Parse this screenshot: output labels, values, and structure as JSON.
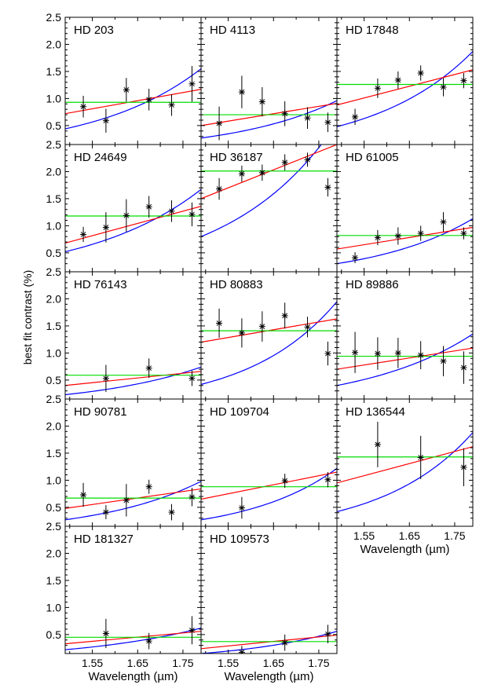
{
  "figure": {
    "ylabel": "best fit contrast (%)",
    "xlabel": "Wavelength (µm)",
    "x_ticks": [
      "1.55",
      "1.65",
      "1.75"
    ],
    "y_ticks": [
      "0.5",
      "1.0",
      "1.5",
      "2.0",
      "2.5"
    ]
  },
  "colors": {
    "flat": "#00dd00",
    "fit_red": "#ff0000",
    "fit_blue": "#0000ff",
    "data": "#000000"
  },
  "chart_data": [
    {
      "type": "scatter",
      "title": "HD 203",
      "xlim": [
        1.49,
        1.79
      ],
      "ylim": [
        0.15,
        2.5
      ],
      "points": [
        [
          1.53,
          0.85,
          0.2
        ],
        [
          1.58,
          0.59,
          0.22
        ],
        [
          1.625,
          1.16,
          0.22
        ],
        [
          1.675,
          0.98,
          0.2
        ],
        [
          1.725,
          0.88,
          0.2
        ],
        [
          1.77,
          1.27,
          0.33
        ]
      ],
      "flat": 0.93,
      "red_line": [
        0.72,
        1.17
      ],
      "blue_curve": [
        0.44,
        1.55
      ]
    },
    {
      "type": "scatter",
      "title": "HD 4113",
      "xlim": [
        1.49,
        1.79
      ],
      "ylim": [
        0.15,
        2.5
      ],
      "points": [
        [
          1.53,
          0.54,
          0.31
        ],
        [
          1.58,
          1.12,
          0.3
        ],
        [
          1.625,
          0.94,
          0.27
        ],
        [
          1.675,
          0.72,
          0.23
        ],
        [
          1.725,
          0.64,
          0.2
        ],
        [
          1.77,
          0.56,
          0.18
        ]
      ],
      "flat": 0.7,
      "red_line": [
        0.5,
        0.91
      ],
      "blue_curve": [
        0.27,
        0.96
      ]
    },
    {
      "type": "scatter",
      "title": "HD 17848",
      "xlim": [
        1.49,
        1.79
      ],
      "ylim": [
        0.15,
        2.5
      ],
      "points": [
        [
          1.53,
          0.66,
          0.15
        ],
        [
          1.58,
          1.19,
          0.18
        ],
        [
          1.625,
          1.34,
          0.16
        ],
        [
          1.675,
          1.47,
          0.14
        ],
        [
          1.725,
          1.21,
          0.17
        ],
        [
          1.77,
          1.33,
          0.14
        ]
      ],
      "flat": 1.26,
      "red_line": [
        0.88,
        1.53
      ],
      "blue_curve": [
        0.48,
        1.87
      ]
    },
    {
      "type": "scatter",
      "title": "HD 24649",
      "xlim": [
        1.49,
        1.79
      ],
      "ylim": [
        0.15,
        2.5
      ],
      "points": [
        [
          1.53,
          0.84,
          0.14
        ],
        [
          1.58,
          0.97,
          0.28
        ],
        [
          1.625,
          1.19,
          0.3
        ],
        [
          1.675,
          1.35,
          0.2
        ],
        [
          1.725,
          1.27,
          0.2
        ],
        [
          1.77,
          1.21,
          0.22
        ]
      ],
      "flat": 1.18,
      "red_line": [
        0.68,
        1.36
      ],
      "blue_curve": [
        0.52,
        1.67
      ]
    },
    {
      "type": "scatter",
      "title": "HD 36187",
      "xlim": [
        1.49,
        1.79
      ],
      "ylim": [
        0.15,
        2.5
      ],
      "points": [
        [
          1.53,
          1.68,
          0.2
        ],
        [
          1.58,
          1.96,
          0.15
        ],
        [
          1.625,
          1.98,
          0.15
        ],
        [
          1.675,
          2.17,
          0.15
        ],
        [
          1.725,
          2.22,
          0.13
        ],
        [
          1.77,
          1.71,
          0.17
        ]
      ],
      "flat": 2.01,
      "red_line": [
        1.5,
        2.5
      ],
      "blue_curve": [
        0.8,
        2.9
      ]
    },
    {
      "type": "scatter",
      "title": "HD 61005",
      "xlim": [
        1.49,
        1.79
      ],
      "ylim": [
        0.15,
        2.5
      ],
      "points": [
        [
          1.53,
          0.41,
          0.1
        ],
        [
          1.58,
          0.78,
          0.14
        ],
        [
          1.625,
          0.81,
          0.16
        ],
        [
          1.675,
          0.86,
          0.14
        ],
        [
          1.725,
          1.07,
          0.18
        ],
        [
          1.77,
          0.86,
          0.11
        ]
      ],
      "flat": 0.82,
      "red_line": [
        0.57,
        0.97
      ],
      "blue_curve": [
        0.3,
        1.13
      ]
    },
    {
      "type": "scatter",
      "title": "HD 76143",
      "xlim": [
        1.49,
        1.79
      ],
      "ylim": [
        0.15,
        2.5
      ],
      "points": [
        [
          1.58,
          0.53,
          0.25
        ],
        [
          1.675,
          0.72,
          0.18
        ],
        [
          1.77,
          0.53,
          0.14
        ]
      ],
      "flat": 0.59,
      "red_line": [
        0.4,
        0.66
      ],
      "blue_curve": [
        0.23,
        0.74
      ]
    },
    {
      "type": "scatter",
      "title": "HD 80883",
      "xlim": [
        1.49,
        1.79
      ],
      "ylim": [
        0.15,
        2.5
      ],
      "points": [
        [
          1.53,
          1.55,
          0.27
        ],
        [
          1.58,
          1.37,
          0.27
        ],
        [
          1.625,
          1.49,
          0.28
        ],
        [
          1.675,
          1.69,
          0.24
        ],
        [
          1.725,
          1.48,
          0.19
        ],
        [
          1.77,
          0.99,
          0.22
        ]
      ],
      "flat": 1.41,
      "red_line": [
        1.2,
        1.63
      ],
      "blue_curve": [
        0.42,
        1.95
      ]
    },
    {
      "type": "scatter",
      "title": "HD 89886",
      "xlim": [
        1.49,
        1.79
      ],
      "ylim": [
        0.15,
        2.5
      ],
      "points": [
        [
          1.53,
          1.01,
          0.38
        ],
        [
          1.58,
          0.99,
          0.3
        ],
        [
          1.625,
          1.0,
          0.28
        ],
        [
          1.675,
          0.96,
          0.26
        ],
        [
          1.725,
          0.85,
          0.28
        ],
        [
          1.77,
          0.73,
          0.3
        ]
      ],
      "flat": 0.94,
      "red_line": [
        0.7,
        1.09
      ],
      "blue_curve": [
        0.4,
        1.35
      ]
    },
    {
      "type": "scatter",
      "title": "HD 90781",
      "xlim": [
        1.49,
        1.79
      ],
      "ylim": [
        0.15,
        2.5
      ],
      "points": [
        [
          1.53,
          0.73,
          0.22
        ],
        [
          1.58,
          0.41,
          0.13
        ],
        [
          1.625,
          0.63,
          0.3
        ],
        [
          1.675,
          0.88,
          0.13
        ],
        [
          1.725,
          0.41,
          0.15
        ],
        [
          1.77,
          0.69,
          0.17
        ]
      ],
      "flat": 0.67,
      "red_line": [
        0.48,
        0.84
      ],
      "blue_curve": [
        0.27,
        0.98
      ]
    },
    {
      "type": "scatter",
      "title": "HD 109704",
      "xlim": [
        1.49,
        1.79
      ],
      "ylim": [
        0.15,
        2.5
      ],
      "points": [
        [
          1.58,
          0.49,
          0.2
        ],
        [
          1.675,
          0.99,
          0.13
        ],
        [
          1.77,
          1.01,
          0.14
        ]
      ],
      "flat": 0.88,
      "red_line": [
        0.65,
        1.15
      ],
      "blue_curve": [
        0.27,
        1.22
      ]
    },
    {
      "type": "scatter",
      "title": "HD 136544",
      "xlim": [
        1.49,
        1.79
      ],
      "ylim": [
        0.15,
        2.5
      ],
      "points": [
        [
          1.58,
          1.66,
          0.42
        ],
        [
          1.675,
          1.42,
          0.4
        ],
        [
          1.77,
          1.24,
          0.35
        ]
      ],
      "flat": 1.43,
      "red_line": [
        0.95,
        1.62
      ],
      "blue_curve": [
        0.42,
        1.88
      ]
    },
    {
      "type": "scatter",
      "title": "HD 181327",
      "xlim": [
        1.49,
        1.79
      ],
      "ylim": [
        0.15,
        2.5
      ],
      "points": [
        [
          1.58,
          0.52,
          0.27
        ],
        [
          1.675,
          0.38,
          0.15
        ],
        [
          1.77,
          0.58,
          0.26
        ]
      ],
      "flat": 0.45,
      "red_line": [
        0.33,
        0.56
      ],
      "blue_curve": [
        0.22,
        0.62
      ]
    },
    {
      "type": "scatter",
      "title": "HD 109573",
      "xlim": [
        1.49,
        1.79
      ],
      "ylim": [
        0.15,
        2.5
      ],
      "points": [
        [
          1.58,
          0.17,
          0.12
        ],
        [
          1.675,
          0.35,
          0.15
        ],
        [
          1.77,
          0.51,
          0.17
        ]
      ],
      "flat": 0.37,
      "red_line": [
        0.24,
        0.49
      ],
      "blue_curve": [
        0.15,
        0.56
      ]
    }
  ]
}
